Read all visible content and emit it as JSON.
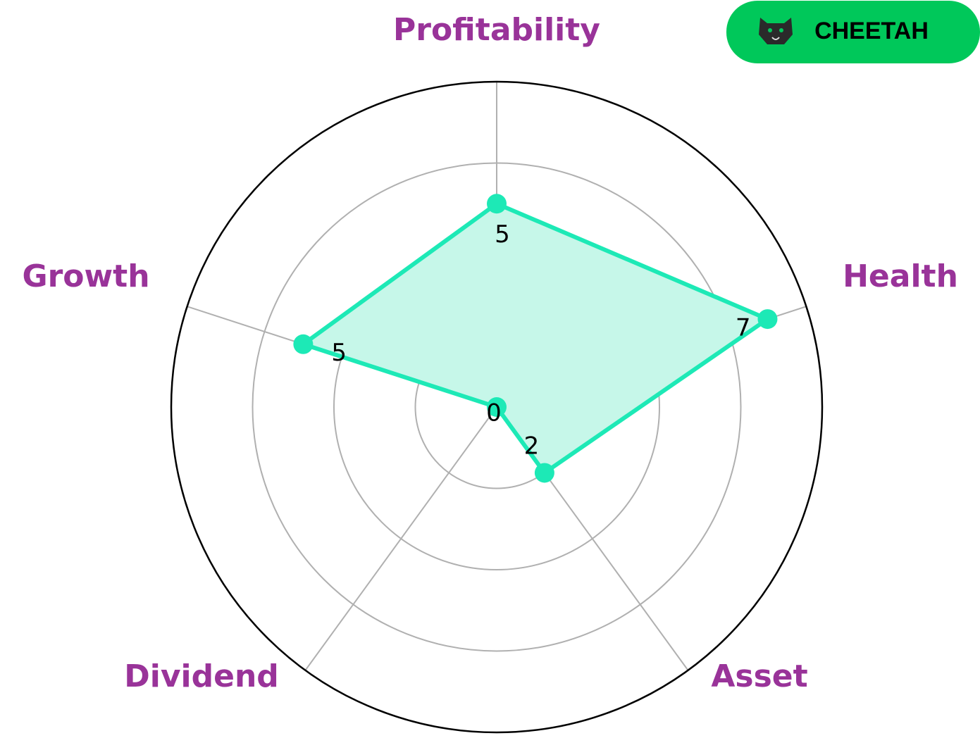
{
  "badge": "CHEETAH",
  "chart_data": {
    "type": "radar",
    "categories": [
      "Profitability",
      "Health",
      "Asset",
      "Dividend",
      "Growth"
    ],
    "values": [
      5,
      7,
      2,
      0,
      5
    ],
    "color": "#1de9b6",
    "fill": "#c6f7e9",
    "label_color": "#993399",
    "ylim": [
      0,
      8
    ],
    "yticks": [
      2,
      4,
      6
    ],
    "grid": true
  }
}
